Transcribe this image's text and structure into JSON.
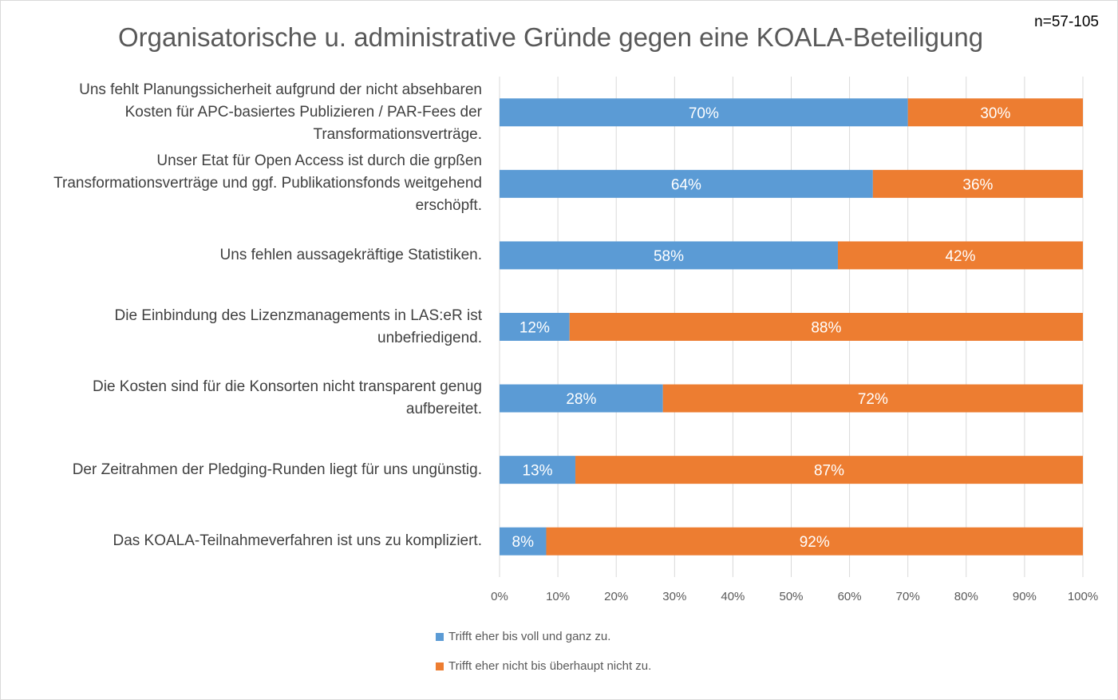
{
  "chart_data": {
    "type": "bar",
    "orientation": "horizontal",
    "stacked": "percent",
    "title": "Organisatorische u. administrative Gründe gegen eine KOALA-Beteiligung",
    "annotation": "n=57-105",
    "categories": [
      "Uns fehlt Planungssicherheit aufgrund der nicht absehbaren Kosten für APC-basiertes Publizieren / PAR-Fees der Transformationsverträge.",
      "Unser Etat für Open Access ist durch die grpßen Transformationsverträge und ggf. Publikationsfonds weitgehend erschöpft.",
      "Uns fehlen aussagekräftige Statistiken.",
      "Die Einbindung des Lizenzmanagements in LAS:eR ist unbefriedigend.",
      "Die Kosten sind für die Konsorten nicht transparent genug aufbereitet.",
      "Der Zeitrahmen der Pledging-Runden liegt für uns ungünstig.",
      "Das KOALA-Teilnahmeverfahren ist uns zu kompliziert."
    ],
    "category_lines": [
      [
        "Uns fehlt Planungssicherheit aufgrund der nicht absehbaren",
        "Kosten für APC-basiertes Publizieren / PAR-Fees der",
        "Transformationsverträge."
      ],
      [
        "Unser Etat für Open Access ist durch die grpßen",
        "Transformationsverträge und ggf. Publikationsfonds weitgehend",
        "erschöpft."
      ],
      [
        "Uns fehlen aussagekräftige Statistiken."
      ],
      [
        "Die Einbindung des Lizenzmanagements in LAS:eR ist",
        "unbefriedigend."
      ],
      [
        "Die Kosten sind für die Konsorten nicht transparent genug",
        "aufbereitet."
      ],
      [
        "Der Zeitrahmen der Pledging-Runden liegt für uns ungünstig."
      ],
      [
        "Das KOALA-Teilnahmeverfahren ist uns zu kompliziert."
      ]
    ],
    "series": [
      {
        "name": "Trifft eher bis voll und ganz zu.",
        "color": "#5b9bd5",
        "values": [
          70,
          64,
          58,
          12,
          28,
          13,
          8
        ],
        "labels": [
          "70%",
          "64%",
          "58%",
          "12%",
          "28%",
          "13%",
          "8%"
        ]
      },
      {
        "name": "Trifft eher nicht bis überhaupt nicht zu.",
        "color": "#ed7d31",
        "values": [
          30,
          36,
          42,
          88,
          72,
          87,
          92
        ],
        "labels": [
          "30%",
          "36%",
          "42%",
          "88%",
          "72%",
          "87%",
          "92%"
        ]
      }
    ],
    "xlim": [
      0,
      100
    ],
    "xticks": [
      "0%",
      "10%",
      "20%",
      "30%",
      "40%",
      "50%",
      "60%",
      "70%",
      "80%",
      "90%",
      "100%"
    ],
    "grid": true,
    "legend_position": "bottom"
  }
}
